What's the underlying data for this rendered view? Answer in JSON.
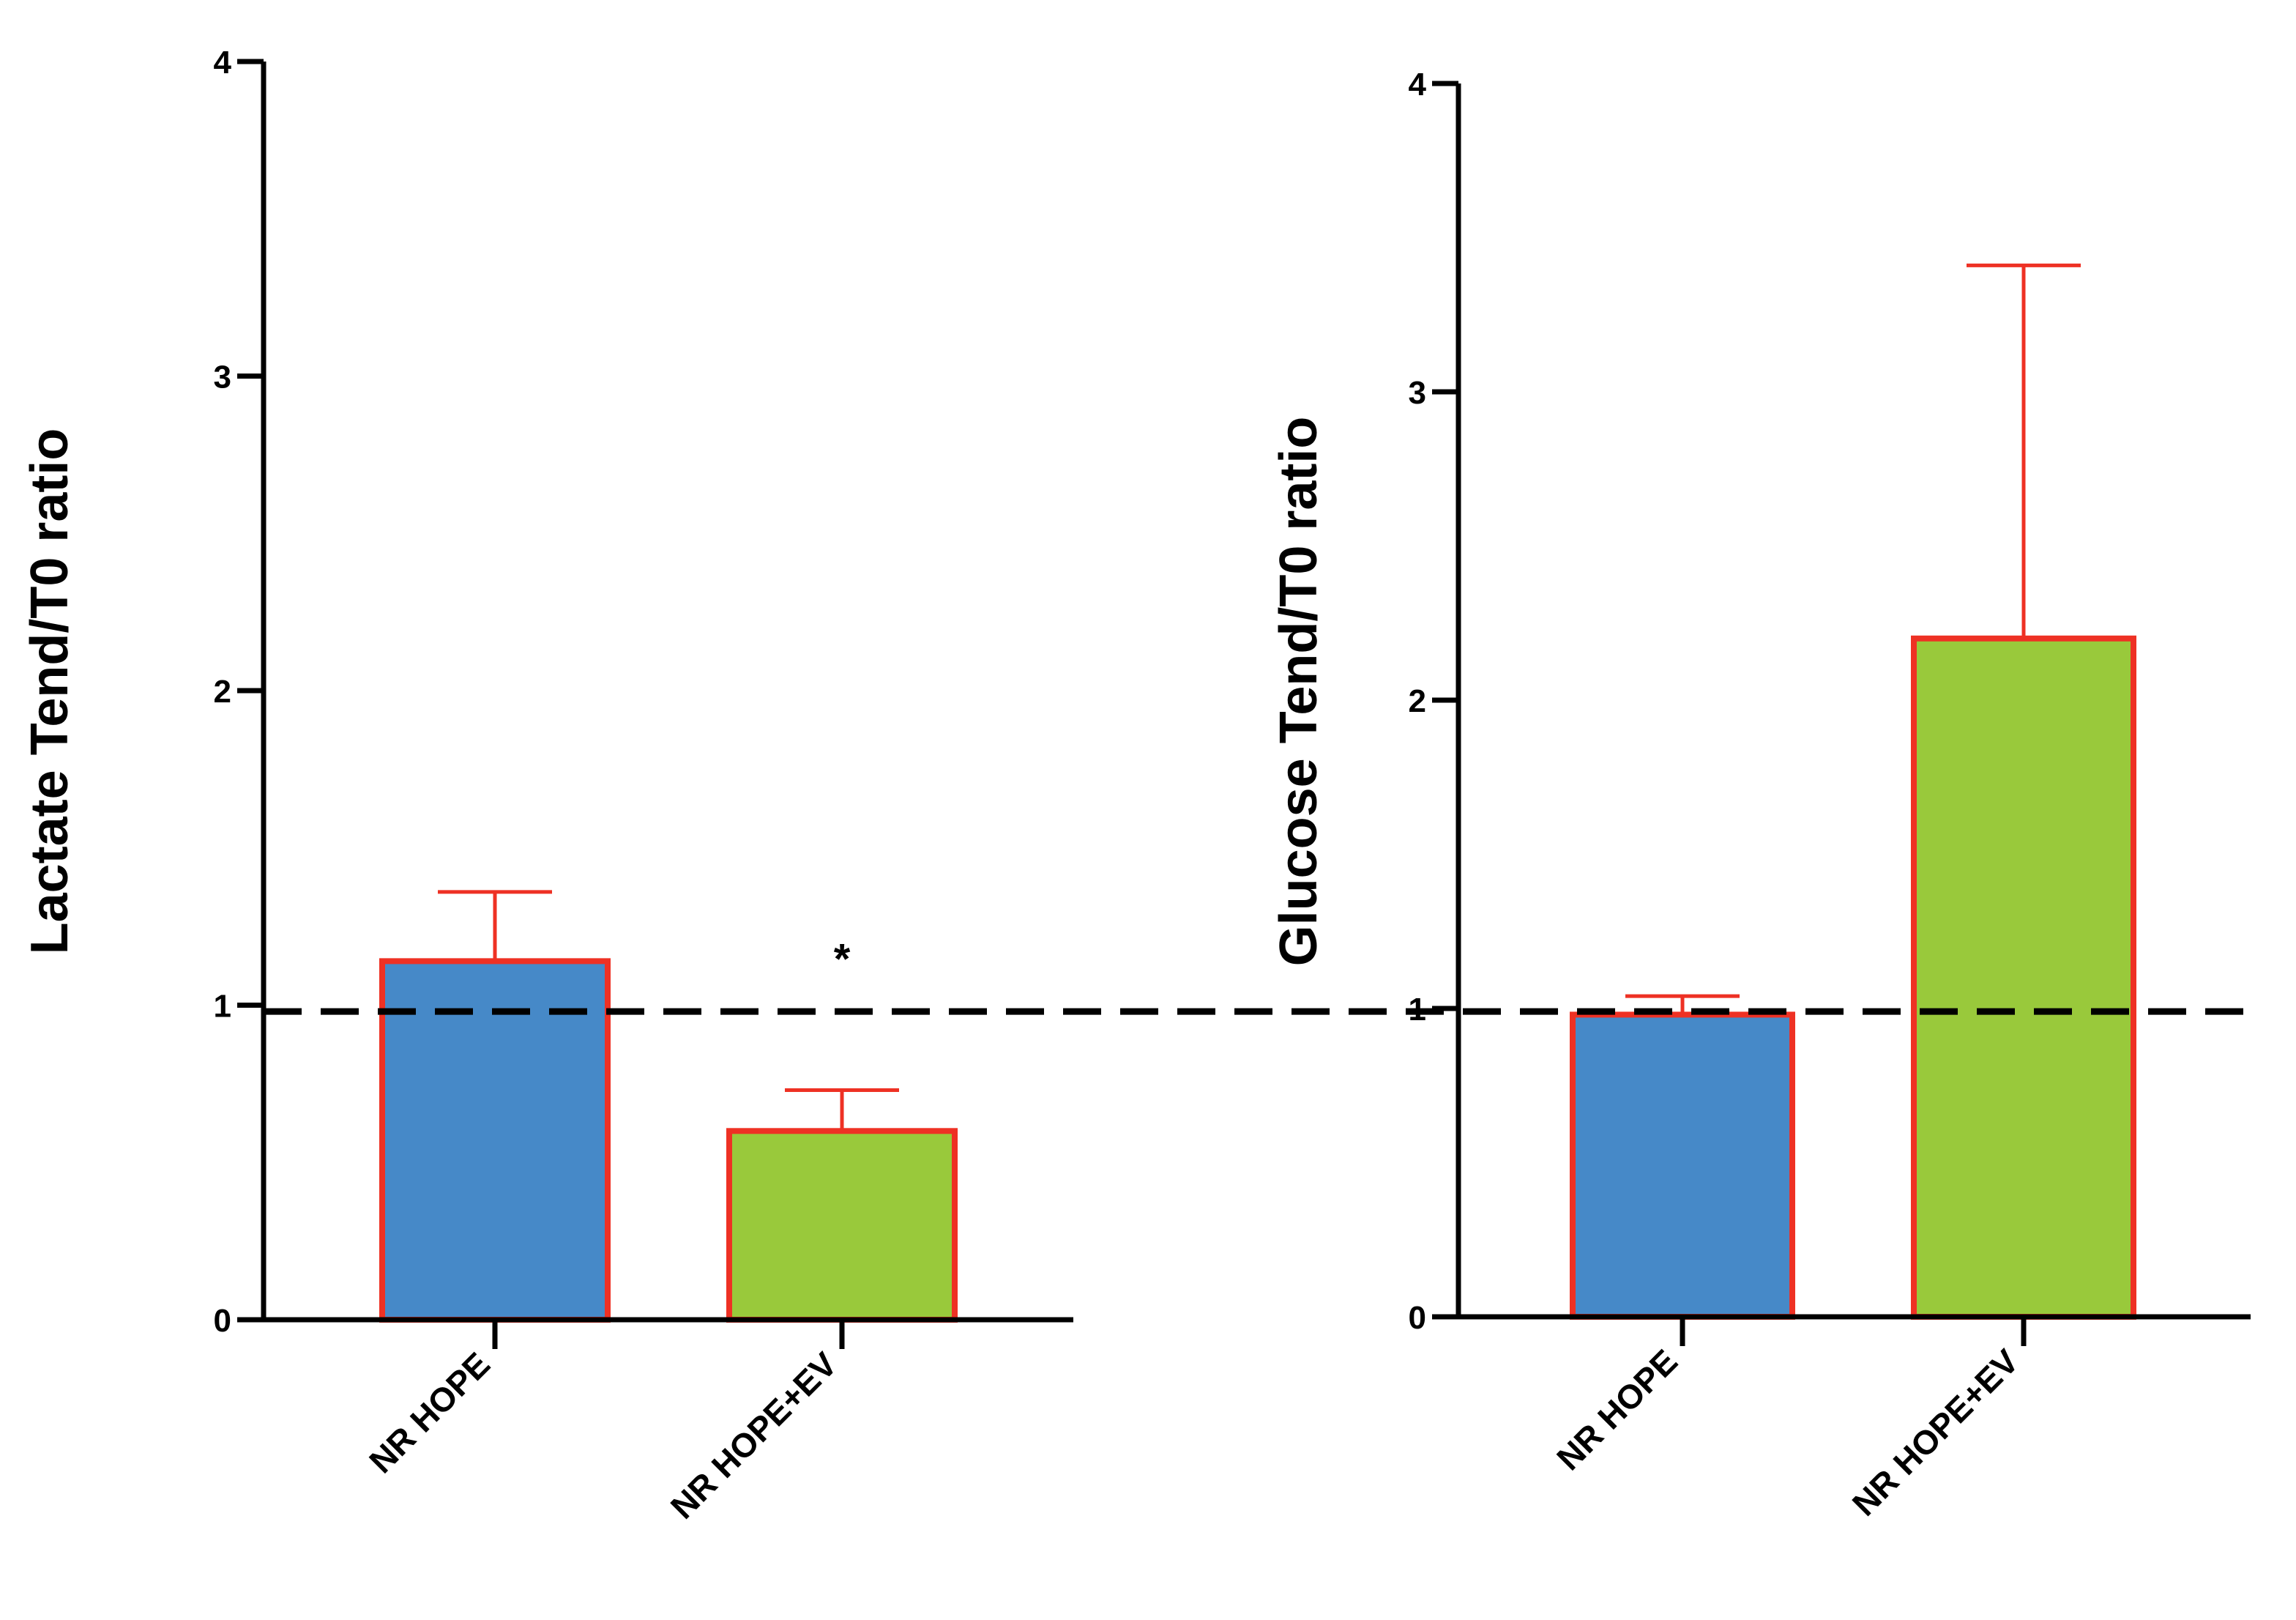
{
  "colors": {
    "series": [
      "#4689C8",
      "#99C93B"
    ],
    "bar_edge": "#EE3124",
    "error_bar": "#EE3124",
    "axis": "#000000",
    "reference_line": "#000000"
  },
  "chart_data": [
    {
      "type": "bar",
      "title": "",
      "xlabel": "",
      "ylabel": "Lactate Tend/T0 ratio",
      "categories": [
        "NR HOPE",
        "NR HOPE+EV"
      ],
      "values": [
        1.14,
        0.6
      ],
      "error_upper": [
        1.36,
        0.73
      ],
      "ylim": [
        0,
        4
      ],
      "yticks": [
        "0",
        "1",
        "2",
        "3",
        "4"
      ],
      "reference_line": 0.98,
      "annotations": [
        {
          "text": "*",
          "category": "NR HOPE+EV"
        }
      ]
    },
    {
      "type": "bar",
      "title": "",
      "xlabel": "",
      "ylabel": "Glucose Tend/T0 ratio",
      "categories": [
        "NR HOPE",
        "NR HOPE+EV"
      ],
      "values": [
        0.98,
        2.2
      ],
      "error_upper": [
        1.04,
        3.41
      ],
      "ylim": [
        0,
        4
      ],
      "yticks": [
        "0",
        "1",
        "2",
        "3",
        "4"
      ],
      "reference_line": 0.98,
      "annotations": []
    }
  ]
}
